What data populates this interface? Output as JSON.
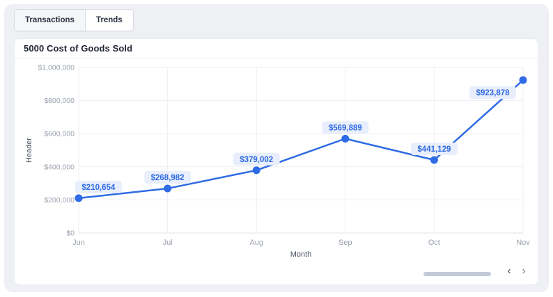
{
  "tabs": [
    {
      "label": "Transactions",
      "active": false
    },
    {
      "label": "Trends",
      "active": true
    }
  ],
  "card": {
    "title": "5000 Cost of Goods Sold"
  },
  "chart_data": {
    "type": "line",
    "title": "5000 Cost of Goods Sold",
    "xlabel": "Month",
    "ylabel": "Header",
    "categories": [
      "Jun",
      "Jul",
      "Aug",
      "Sep",
      "Oct",
      "Nov"
    ],
    "values": [
      210654,
      268982,
      379002,
      569889,
      441129,
      923878
    ],
    "point_labels": [
      "$210,654",
      "$268,982",
      "$379,002",
      "$569,889",
      "$441,129",
      "$923,878"
    ],
    "label_placements": [
      "above-right",
      "above",
      "above",
      "above",
      "above",
      "below-left"
    ],
    "ylim": [
      0,
      1000000
    ],
    "y_ticks": [
      "$0",
      "$200,000",
      "$400,000",
      "$600,000",
      "$800,000",
      "$1,000,000"
    ],
    "grid": true,
    "legend": "none",
    "series_color": "#2e6be4",
    "point_label_bg": "#e8eefb",
    "grid_color": "#edeff3",
    "axis_line_color": "#e2e5eb",
    "tick_text_color": "#9aa1ae",
    "axis_title_color": "#4a5262"
  },
  "footer": {
    "prev_icon": "‹",
    "next_icon": "›"
  }
}
